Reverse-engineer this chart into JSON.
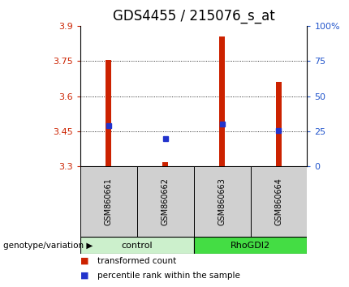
{
  "title": "GDS4455 / 215076_s_at",
  "samples": [
    "GSM860661",
    "GSM860662",
    "GSM860663",
    "GSM860664"
  ],
  "bar_bottom": 3.3,
  "bar_tops": [
    3.755,
    3.317,
    3.855,
    3.66
  ],
  "blue_dot_values": [
    3.475,
    3.42,
    3.48,
    3.455
  ],
  "ylim": [
    3.3,
    3.9
  ],
  "yticks": [
    3.3,
    3.45,
    3.6,
    3.75,
    3.9
  ],
  "right_yticks": [
    0,
    25,
    50,
    75,
    100
  ],
  "right_ytick_labels": [
    "0",
    "25",
    "50",
    "75",
    "100%"
  ],
  "bar_color": "#cc2200",
  "blue_color": "#2233cc",
  "left_label_color": "#cc2200",
  "right_label_color": "#2255cc",
  "title_fontsize": 12,
  "tick_fontsize": 8,
  "sample_label_fontsize": 7,
  "group_fontsize": 8,
  "legend_red_label": "transformed count",
  "legend_blue_label": "percentile rank within the sample",
  "genotype_label": "genotype/variation",
  "sample_bg_color": "#d0d0d0",
  "control_fill": "#ccf0cc",
  "rhodgi2_fill": "#44dd44",
  "bar_width": 0.1
}
